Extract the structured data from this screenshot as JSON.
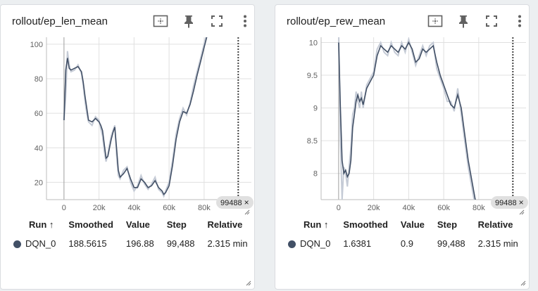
{
  "cards": [
    {
      "title": "rollout/ep_len_mean",
      "step_chip": "99488",
      "table": {
        "headers": [
          "Run",
          "Smoothed",
          "Value",
          "Step",
          "Relative"
        ],
        "sort_arrow": "↑",
        "rows": [
          {
            "run": "DQN_0",
            "smoothed": "188.5615",
            "value": "196.88",
            "step": "99,488",
            "relative": "2.315 min",
            "color": "#425066"
          }
        ]
      },
      "chart_data": {
        "type": "line",
        "title": "rollout/ep_len_mean",
        "xlim": [
          -10000,
          107000
        ],
        "ylim": [
          10,
          104
        ],
        "x_ticks": [
          0,
          20000,
          40000,
          60000,
          80000
        ],
        "x_tick_labels": [
          "0",
          "20k",
          "40k",
          "60k",
          "80k"
        ],
        "y_ticks": [
          20,
          40,
          60,
          80,
          100
        ],
        "y_tick_labels": [
          "20",
          "40",
          "60",
          "80",
          "100"
        ],
        "cursor_step": 99488,
        "series": [
          {
            "name": "DQN_0",
            "color": "#425066",
            "raw_color": "#c5cbd6",
            "x": [
              0,
              1000,
              2000,
              3000,
              4000,
              6000,
              8000,
              10000,
              11000,
              12000,
              13000,
              14000,
              16000,
              18000,
              20000,
              21000,
              22000,
              23000,
              24000,
              25000,
              26000,
              27000,
              28000,
              29000,
              30000,
              31000,
              32000,
              34000,
              36000,
              38000,
              40000,
              42000,
              44000,
              46000,
              48000,
              50000,
              52000,
              54000,
              56000,
              57000,
              58000,
              60000,
              62000,
              64000,
              66000,
              68000,
              70000,
              72000,
              74000,
              76000,
              78000,
              80000,
              82000
            ],
            "smoothed": [
              56,
              85,
              92,
              86,
              85,
              86,
              87,
              84,
              78,
              70,
              63,
              56,
              55,
              57,
              55,
              53,
              50,
              42,
              34,
              35,
              40,
              45,
              49,
              52,
              40,
              27,
              23,
              25,
              28,
              22,
              17,
              17,
              22,
              20,
              17,
              18,
              21,
              17,
              15,
              13,
              14,
              18,
              30,
              45,
              55,
              61,
              60,
              65,
              73,
              82,
              90,
              98,
              106
            ],
            "raw": [
              56,
              70,
              96,
              88,
              84,
              85,
              88,
              83,
              76,
              67,
              60,
              55,
              53,
              58,
              56,
              51,
              47,
              38,
              32,
              36,
              42,
              47,
              50,
              53,
              36,
              24,
              22,
              27,
              29,
              20,
              15,
              18,
              24,
              19,
              16,
              19,
              23,
              16,
              14,
              12,
              15,
              20,
              33,
              48,
              57,
              63,
              59,
              66,
              76,
              84,
              92,
              100,
              108
            ]
          }
        ]
      }
    },
    {
      "title": "rollout/ep_rew_mean",
      "step_chip": "99488",
      "table": {
        "headers": [
          "Run",
          "Smoothed",
          "Value",
          "Step",
          "Relative"
        ],
        "sort_arrow": "↑",
        "rows": [
          {
            "run": "DQN_0",
            "smoothed": "1.6381",
            "value": "0.9",
            "step": "99,488",
            "relative": "2.315 min",
            "color": "#425066"
          }
        ]
      },
      "chart_data": {
        "type": "line",
        "title": "rollout/ep_rew_mean",
        "xlim": [
          -10000,
          107000
        ],
        "ylim": [
          7.6,
          10.08
        ],
        "x_ticks": [
          0,
          20000,
          40000,
          60000,
          80000
        ],
        "x_tick_labels": [
          "0",
          "20k",
          "40k",
          "60k",
          "80k"
        ],
        "y_ticks": [
          8,
          8.5,
          9,
          9.5,
          10
        ],
        "y_tick_labels": [
          "8",
          "8.5",
          "9",
          "9.5",
          "10"
        ],
        "cursor_step": 99488,
        "series": [
          {
            "name": "DQN_0",
            "color": "#425066",
            "raw_color": "#c5cbd6",
            "x": [
              0,
              1000,
              2000,
              3000,
              4000,
              5000,
              6000,
              7000,
              8000,
              9000,
              10000,
              11000,
              12000,
              13000,
              14000,
              16000,
              18000,
              20000,
              22000,
              24000,
              26000,
              28000,
              30000,
              32000,
              34000,
              36000,
              38000,
              40000,
              42000,
              44000,
              46000,
              48000,
              50000,
              52000,
              54000,
              56000,
              58000,
              60000,
              62000,
              64000,
              66000,
              68000,
              70000,
              72000,
              74000,
              76000,
              78000,
              79000
            ],
            "smoothed": [
              10.0,
              9.0,
              8.2,
              8.0,
              8.05,
              7.95,
              8.0,
              8.2,
              8.7,
              8.9,
              9.1,
              9.2,
              9.1,
              9.15,
              9.05,
              9.3,
              9.4,
              9.5,
              9.8,
              9.95,
              9.9,
              9.85,
              9.95,
              9.9,
              9.85,
              9.95,
              9.9,
              10.0,
              9.9,
              9.7,
              9.75,
              9.9,
              9.85,
              9.9,
              9.95,
              9.7,
              9.5,
              9.35,
              9.2,
              9.05,
              9.0,
              9.2,
              9.0,
              8.6,
              8.2,
              7.9,
              7.6,
              7.5
            ],
            "raw": [
              10.2,
              8.5,
              7.6,
              8.1,
              8.0,
              7.8,
              8.1,
              8.4,
              8.9,
              9.0,
              9.25,
              9.1,
              9.0,
              9.25,
              9.0,
              9.35,
              9.45,
              9.55,
              9.9,
              10.0,
              9.85,
              9.8,
              10.0,
              9.85,
              9.8,
              10.0,
              9.85,
              10.05,
              9.85,
              9.65,
              9.8,
              9.95,
              9.8,
              9.95,
              10.0,
              9.6,
              9.45,
              9.3,
              9.1,
              9.1,
              8.95,
              9.3,
              8.9,
              8.5,
              8.1,
              7.8,
              7.5,
              7.4
            ]
          }
        ]
      }
    }
  ]
}
